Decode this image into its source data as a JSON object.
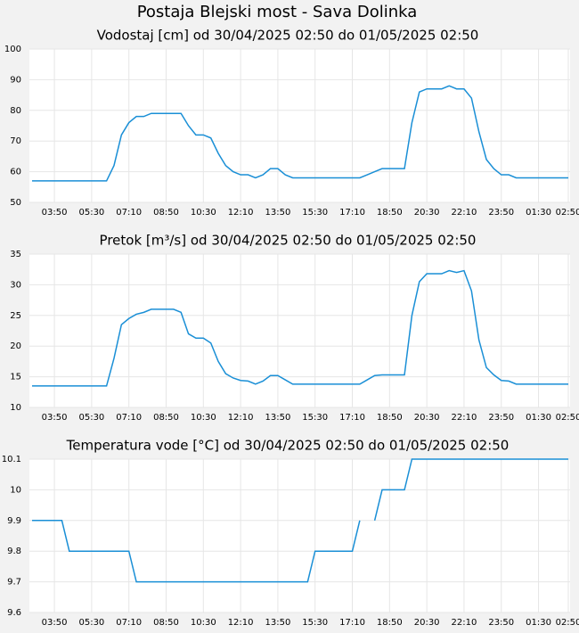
{
  "title": "Postaja Blejski most - Sava Dolinka",
  "chart_data": [
    {
      "type": "line",
      "title": "Vodostaj [cm] od 30/04/2025 02:50 do 01/05/2025 02:50",
      "x": [
        "02:50",
        "03:10",
        "03:30",
        "03:50",
        "04:10",
        "04:30",
        "04:50",
        "05:10",
        "05:30",
        "05:50",
        "06:10",
        "06:30",
        "06:50",
        "07:10",
        "07:30",
        "07:50",
        "08:10",
        "08:30",
        "08:50",
        "09:10",
        "09:30",
        "09:50",
        "10:10",
        "10:30",
        "10:50",
        "11:10",
        "11:30",
        "11:50",
        "12:10",
        "12:30",
        "12:50",
        "13:10",
        "13:30",
        "13:50",
        "14:10",
        "14:30",
        "14:50",
        "15:10",
        "15:30",
        "15:50",
        "16:10",
        "16:30",
        "16:50",
        "17:10",
        "17:30",
        "17:50",
        "18:10",
        "18:30",
        "18:50",
        "19:10",
        "19:30",
        "19:50",
        "20:10",
        "20:30",
        "20:50",
        "21:10",
        "21:30",
        "21:50",
        "22:10",
        "22:30",
        "22:50",
        "23:10",
        "23:30",
        "23:50",
        "00:10",
        "00:30",
        "00:50",
        "01:10",
        "01:30",
        "01:50",
        "02:10",
        "02:30",
        "02:50"
      ],
      "values": [
        57,
        57,
        57,
        57,
        57,
        57,
        57,
        57,
        57,
        57,
        57,
        62,
        72,
        76,
        78,
        78,
        79,
        79,
        79,
        79,
        79,
        75,
        72,
        72,
        71,
        66,
        62,
        60,
        59,
        59,
        58,
        59,
        61,
        61,
        59,
        58,
        58,
        58,
        58,
        58,
        58,
        58,
        58,
        58,
        58,
        59,
        60,
        61,
        61,
        61,
        61,
        76,
        86,
        87,
        87,
        87,
        88,
        87,
        87,
        84,
        73,
        64,
        61,
        59,
        59,
        58,
        58,
        58,
        58,
        58,
        58,
        58,
        58
      ],
      "color": "#1a8fd6",
      "ylim": [
        50,
        100
      ],
      "yticks": [
        50,
        60,
        70,
        80,
        90,
        100
      ],
      "xticks": [
        "03:50",
        "05:30",
        "07:10",
        "08:50",
        "10:30",
        "12:10",
        "13:50",
        "15:30",
        "17:10",
        "18:50",
        "20:30",
        "22:10",
        "23:50",
        "01:30",
        "02:50"
      ],
      "grid": true
    },
    {
      "type": "line",
      "title": "Pretok [m³/s] od 30/04/2025 02:50 do 01/05/2025 02:50",
      "x": [
        "02:50",
        "03:10",
        "03:30",
        "03:50",
        "04:10",
        "04:30",
        "04:50",
        "05:10",
        "05:30",
        "05:50",
        "06:10",
        "06:30",
        "06:50",
        "07:10",
        "07:30",
        "07:50",
        "08:10",
        "08:30",
        "08:50",
        "09:10",
        "09:30",
        "09:50",
        "10:10",
        "10:30",
        "10:50",
        "11:10",
        "11:30",
        "11:50",
        "12:10",
        "12:30",
        "12:50",
        "13:10",
        "13:30",
        "13:50",
        "14:10",
        "14:30",
        "14:50",
        "15:10",
        "15:30",
        "15:50",
        "16:10",
        "16:30",
        "16:50",
        "17:10",
        "17:30",
        "17:50",
        "18:10",
        "18:30",
        "18:50",
        "19:10",
        "19:30",
        "19:50",
        "20:10",
        "20:30",
        "20:50",
        "21:10",
        "21:30",
        "21:50",
        "22:10",
        "22:30",
        "22:50",
        "23:10",
        "23:30",
        "23:50",
        "00:10",
        "00:30",
        "00:50",
        "01:10",
        "01:30",
        "01:50",
        "02:10",
        "02:30",
        "02:50"
      ],
      "values": [
        13.5,
        13.5,
        13.5,
        13.5,
        13.5,
        13.5,
        13.5,
        13.5,
        13.5,
        13.5,
        13.5,
        18,
        23.5,
        24.5,
        25.2,
        25.5,
        26,
        26,
        26,
        26,
        25.5,
        22,
        21.3,
        21.3,
        20.5,
        17.5,
        15.5,
        14.8,
        14.4,
        14.3,
        13.8,
        14.3,
        15.2,
        15.2,
        14.5,
        13.8,
        13.8,
        13.8,
        13.8,
        13.8,
        13.8,
        13.8,
        13.8,
        13.8,
        13.8,
        14.5,
        15.2,
        15.3,
        15.3,
        15.3,
        15.3,
        25,
        30.5,
        31.8,
        31.8,
        31.8,
        32.3,
        32,
        32.3,
        29,
        21,
        16.5,
        15.3,
        14.4,
        14.3,
        13.8,
        13.8,
        13.8,
        13.8,
        13.8,
        13.8,
        13.8,
        13.8
      ],
      "color": "#1a8fd6",
      "ylim": [
        10,
        35
      ],
      "yticks": [
        10,
        15,
        20,
        25,
        30,
        35
      ],
      "xticks": [
        "03:50",
        "05:30",
        "07:10",
        "08:50",
        "10:30",
        "12:10",
        "13:50",
        "15:30",
        "17:10",
        "18:50",
        "20:30",
        "22:10",
        "23:50",
        "01:30",
        "02:50"
      ],
      "grid": true
    },
    {
      "type": "line",
      "title": "Temperatura vode [°C] od 30/04/2025 02:50 do 01/05/2025 02:50",
      "x": [
        "02:50",
        "03:10",
        "03:30",
        "03:50",
        "04:10",
        "04:30",
        "04:50",
        "05:10",
        "05:30",
        "05:50",
        "06:10",
        "06:30",
        "06:50",
        "07:10",
        "07:30",
        "07:50",
        "08:10",
        "08:30",
        "08:50",
        "09:10",
        "09:30",
        "09:50",
        "10:10",
        "10:30",
        "10:50",
        "11:10",
        "11:30",
        "11:50",
        "12:10",
        "12:30",
        "12:50",
        "13:10",
        "13:30",
        "13:50",
        "14:10",
        "14:30",
        "14:50",
        "15:10",
        "15:30",
        "15:50",
        "16:10",
        "16:30",
        "16:50",
        "17:10",
        "17:30",
        "17:50",
        "18:10",
        "18:30",
        "18:50",
        "19:10",
        "19:30",
        "19:50",
        "20:10",
        "20:30",
        "20:50",
        "21:10",
        "21:30",
        "21:50",
        "22:10",
        "22:30",
        "22:50",
        "23:10",
        "23:30",
        "23:50",
        "00:10",
        "00:30",
        "00:50",
        "01:10",
        "01:30",
        "01:50",
        "02:10",
        "02:30",
        "02:50"
      ],
      "values": [
        9.9,
        9.9,
        9.9,
        9.9,
        9.9,
        9.8,
        9.8,
        9.8,
        9.8,
        9.8,
        9.8,
        9.8,
        9.8,
        9.8,
        9.7,
        9.7,
        9.7,
        9.7,
        9.7,
        9.7,
        9.7,
        9.7,
        9.7,
        9.7,
        9.7,
        9.7,
        9.7,
        9.7,
        9.7,
        9.7,
        9.7,
        9.7,
        9.7,
        9.7,
        9.7,
        9.7,
        9.7,
        9.7,
        9.8,
        9.8,
        9.8,
        9.8,
        9.8,
        9.8,
        9.9,
        null,
        9.9,
        10,
        10,
        10,
        10,
        10.1,
        10.1,
        10.1,
        10.1,
        10.1,
        10.1,
        10.1,
        10.1,
        10.1,
        10.1,
        10.1,
        10.1,
        10.1,
        10.1,
        10.1,
        10.1,
        10.1,
        10.1,
        10.1,
        10.1,
        10.1,
        10.1
      ],
      "color": "#1a8fd6",
      "ylim": [
        9.6,
        10.1
      ],
      "yticks": [
        9.6,
        9.7,
        9.8,
        9.9,
        10,
        10.1
      ],
      "xticks": [
        "03:50",
        "05:30",
        "07:10",
        "08:50",
        "10:30",
        "12:10",
        "13:50",
        "15:30",
        "17:10",
        "18:50",
        "20:30",
        "22:10",
        "23:50",
        "01:30",
        "02:50"
      ],
      "grid": true
    }
  ]
}
